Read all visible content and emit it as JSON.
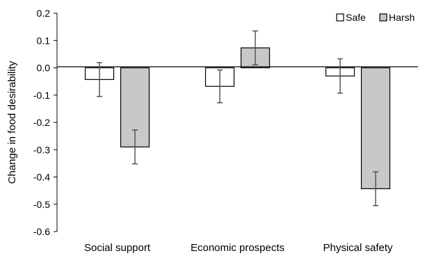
{
  "chart_data": {
    "type": "bar",
    "title": "",
    "xlabel": "",
    "ylabel": "Change in food desirability",
    "ylim": [
      -0.6,
      0.2
    ],
    "yticks": [
      "0.2",
      "0.1",
      "0.0",
      "-0.1",
      "-0.2",
      "-0.3",
      "-0.4",
      "-0.5",
      "-0.6"
    ],
    "grid": false,
    "legend_position": "top-right",
    "categories": [
      "Social support",
      "Economic prospects",
      "Physical safety"
    ],
    "series": [
      {
        "name": "Safe",
        "color": "#ffffff",
        "values": [
          -0.043,
          -0.068,
          -0.03
        ],
        "errors": [
          0.062,
          0.06,
          0.063
        ]
      },
      {
        "name": "Harsh",
        "color": "#c8c8c8",
        "values": [
          -0.29,
          0.073,
          -0.443
        ],
        "errors": [
          0.062,
          0.062,
          0.062
        ]
      }
    ]
  }
}
